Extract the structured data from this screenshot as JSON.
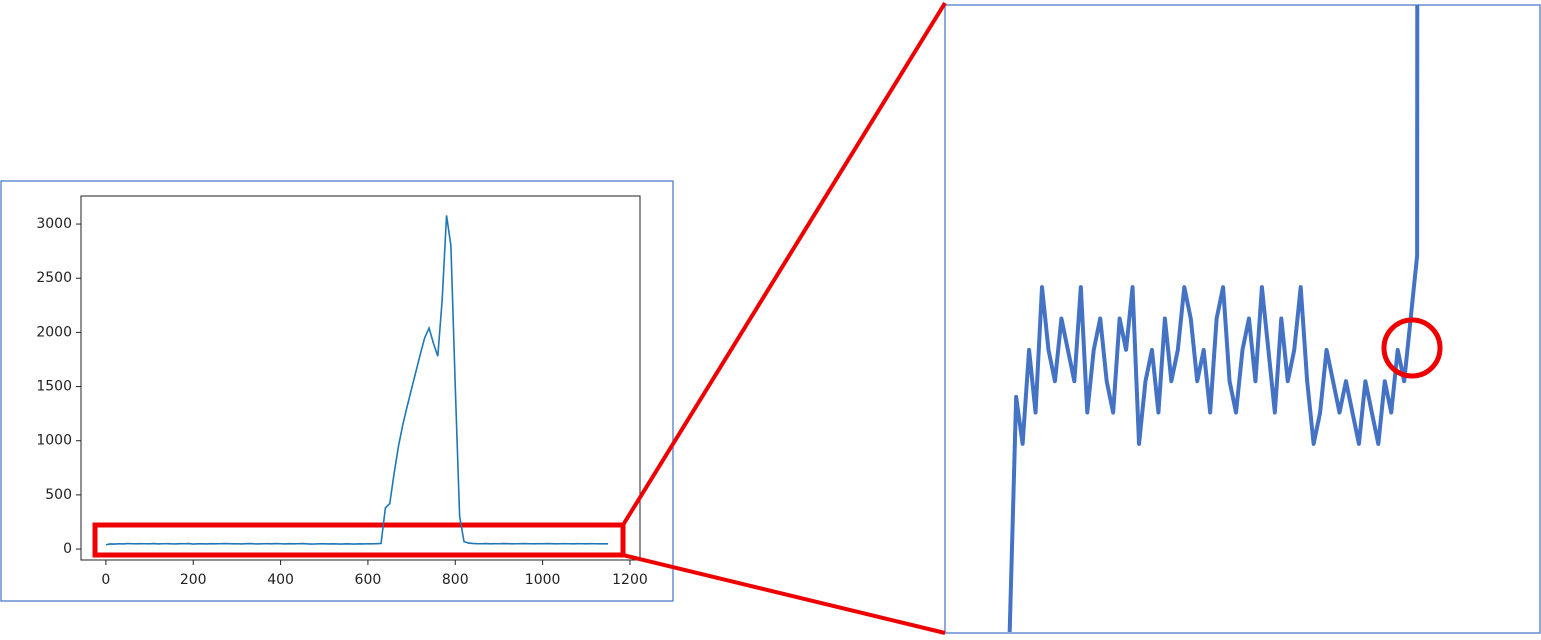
{
  "chart_data": {
    "type": "line",
    "x": [
      0,
      10,
      20,
      30,
      40,
      50,
      60,
      70,
      80,
      90,
      100,
      110,
      120,
      130,
      140,
      150,
      160,
      170,
      180,
      190,
      200,
      210,
      220,
      230,
      240,
      250,
      260,
      270,
      280,
      290,
      300,
      310,
      320,
      330,
      340,
      350,
      360,
      370,
      380,
      390,
      400,
      410,
      420,
      430,
      440,
      450,
      460,
      470,
      480,
      490,
      500,
      510,
      520,
      530,
      540,
      550,
      560,
      570,
      580,
      590,
      600,
      610,
      620,
      630,
      640,
      650,
      660,
      670,
      680,
      690,
      700,
      710,
      720,
      730,
      740,
      750,
      760,
      770,
      780,
      790,
      800,
      810,
      820,
      830,
      840,
      850,
      860,
      870,
      880,
      890,
      900,
      910,
      920,
      930,
      940,
      950,
      960,
      970,
      980,
      990,
      1000,
      1010,
      1020,
      1030,
      1040,
      1050,
      1060,
      1070,
      1080,
      1090,
      1100,
      1110,
      1120,
      1130,
      1140,
      1150
    ],
    "values": [
      40,
      47.5,
      46,
      49,
      47,
      51,
      49,
      48,
      50,
      49,
      48,
      51,
      47,
      49,
      50,
      48,
      47,
      50,
      49,
      51,
      46,
      48,
      49,
      47,
      50,
      48,
      49,
      51,
      50,
      48,
      49,
      47,
      50,
      51,
      48,
      47,
      49,
      50,
      48,
      51,
      49,
      47,
      50,
      48,
      49,
      51,
      48,
      46,
      47,
      49,
      48,
      47,
      48,
      47,
      46,
      48,
      47,
      46,
      48,
      47,
      49,
      48,
      50,
      52,
      380,
      420,
      700,
      950,
      1150,
      1320,
      1480,
      1640,
      1800,
      1950,
      2040,
      1900,
      1780,
      2300,
      3080,
      2800,
      1500,
      300,
      70,
      55,
      52,
      50,
      49,
      51,
      48,
      50,
      49,
      51,
      50,
      48,
      49,
      50,
      51,
      49,
      48,
      50,
      49,
      51,
      50,
      48,
      49,
      50,
      49,
      48,
      50,
      49,
      48,
      50,
      49,
      48,
      49,
      48
    ],
    "color": "#1f77b4",
    "xlim": [
      -57,
      1223
    ],
    "ylim": [
      -101,
      3259
    ],
    "xticks": [
      0,
      200,
      400,
      600,
      800,
      1000,
      1200
    ],
    "yticks": [
      0,
      500,
      1000,
      1500,
      2000,
      2500,
      3000
    ],
    "zoom": {
      "xlim": [
        -100,
        820
      ],
      "ylim": [
        40,
        60
      ],
      "color": "#4472c4"
    }
  }
}
